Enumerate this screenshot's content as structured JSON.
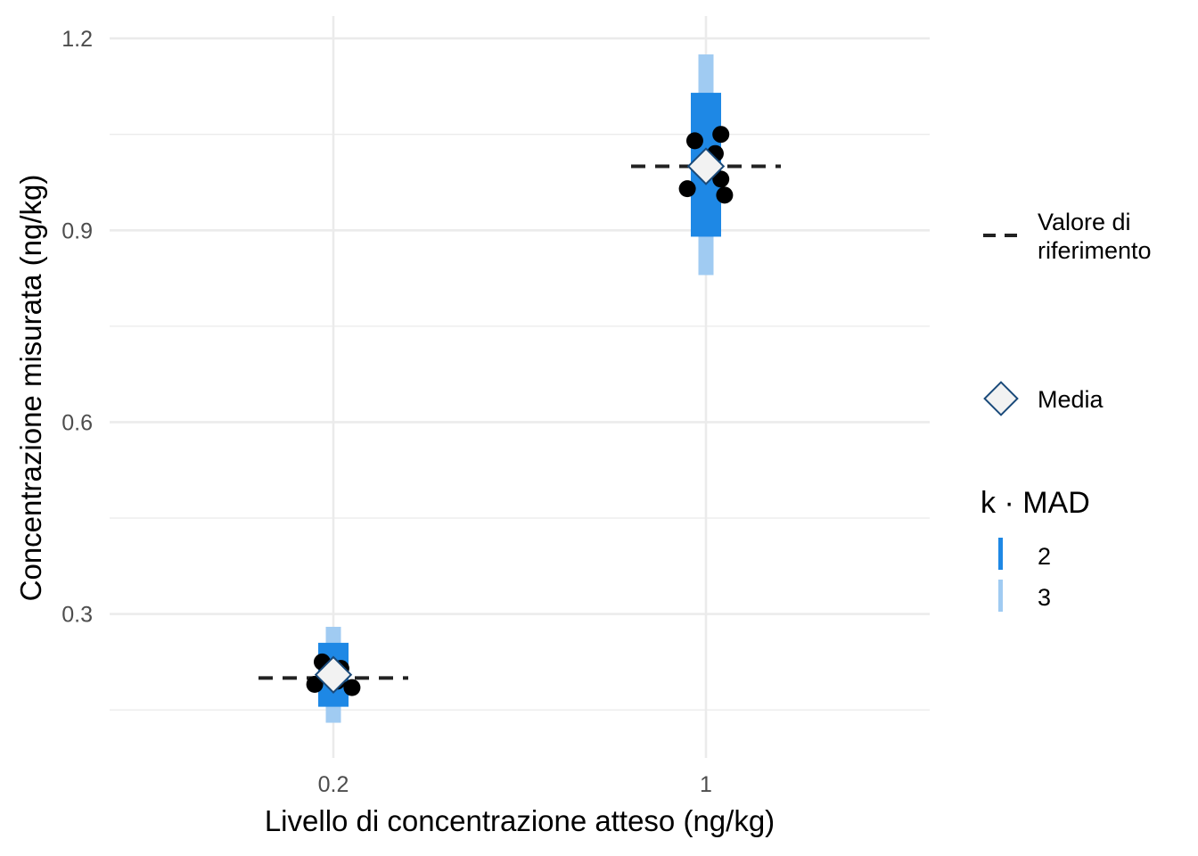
{
  "chart_data": {
    "type": "scatter",
    "xlabel": "Livello di concentrazione atteso (ng/kg)",
    "ylabel": "Concentrazione misurata (ng/kg)",
    "ylim": [
      0.075,
      1.235
    ],
    "yticks": [
      0.3,
      0.6,
      0.9,
      1.2
    ],
    "ytick_labels": [
      "0.3",
      "0.6",
      "0.9",
      "1.2"
    ],
    "categories": [
      "0.2",
      "1"
    ],
    "grid": true,
    "groups": [
      {
        "category": "0.2",
        "reference": 0.2,
        "mean": 0.205,
        "mad2": [
          0.155,
          0.255
        ],
        "mad3": [
          0.13,
          0.28
        ],
        "points": [
          {
            "offset": -0.03,
            "y": 0.225
          },
          {
            "offset": 0.02,
            "y": 0.215
          },
          {
            "offset": -0.05,
            "y": 0.19
          },
          {
            "offset": 0.05,
            "y": 0.185
          },
          {
            "offset": 0.01,
            "y": 0.195
          }
        ]
      },
      {
        "category": "1",
        "reference": 1.0,
        "mean": 1.0,
        "mad2": [
          0.89,
          1.115
        ],
        "mad3": [
          0.83,
          1.175
        ],
        "points": [
          {
            "offset": -0.03,
            "y": 1.04
          },
          {
            "offset": 0.04,
            "y": 1.05
          },
          {
            "offset": 0.025,
            "y": 1.02
          },
          {
            "offset": 0.04,
            "y": 0.98
          },
          {
            "offset": -0.05,
            "y": 0.965
          },
          {
            "offset": 0.05,
            "y": 0.955
          }
        ]
      }
    ],
    "legend": {
      "placement": "right",
      "reference_label": [
        "Valore di",
        "riferimento"
      ],
      "mean_label": "Media",
      "mad_title": "k · MAD",
      "mad_items": [
        {
          "label": "2",
          "color": "#1e88e5"
        },
        {
          "label": "3",
          "color": "#a0cbf2"
        }
      ]
    },
    "colors": {
      "mad2": "#1e88e5",
      "mad3": "#a0cbf2",
      "points": "#000000",
      "reference": "#222222",
      "mean_fill": "#f2f2f2",
      "mean_stroke": "#1a4a7a",
      "grid": "#ebebeb"
    }
  }
}
